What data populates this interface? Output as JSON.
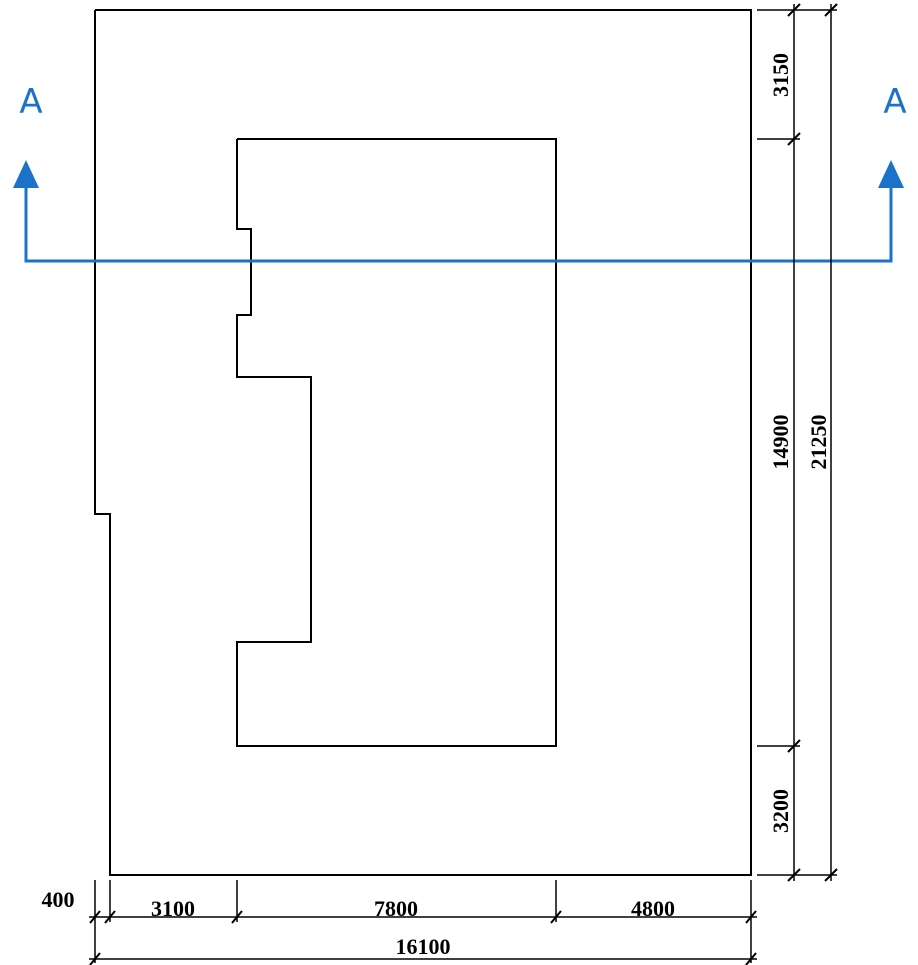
{
  "section": {
    "label_left": "A",
    "label_right": "A",
    "color": "#1a73c8"
  },
  "dimensions": {
    "bottom_segments": [
      "400",
      "3100",
      "7800",
      "4800"
    ],
    "bottom_total": "16100",
    "right_segments": [
      "3150",
      "14900",
      "3200"
    ],
    "right_total": "21250"
  }
}
